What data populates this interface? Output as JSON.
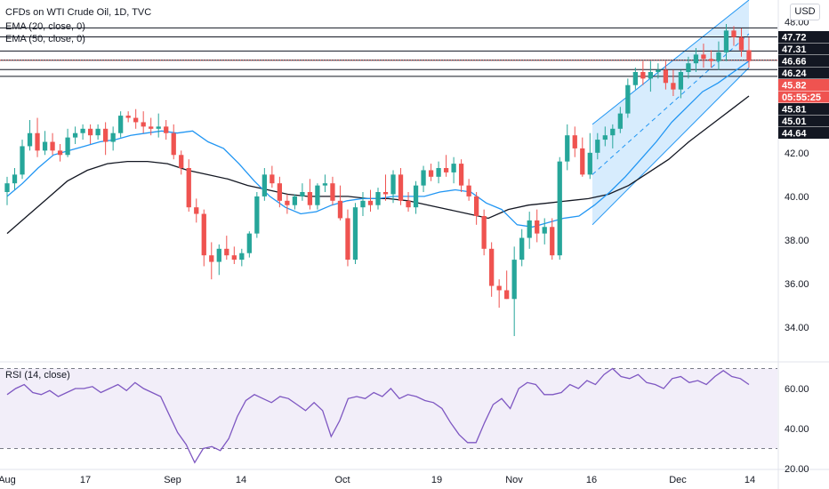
{
  "header": {
    "title": "CFDs on WTI Crude Oil, 1D, TVC",
    "ema20": "EMA (20, close, 0)",
    "ema50": "EMA (50, close, 0)",
    "rsi": "RSI (14, close)",
    "currency": "USD"
  },
  "chart_data": {
    "type": "candlestick",
    "price_axis": {
      "range": [
        32.5,
        49
      ],
      "ticks": [
        "34.00",
        "36.00",
        "38.00",
        "40.00",
        "42.00",
        "48.00"
      ]
    },
    "x_axis": {
      "labels": [
        "Aug",
        "17",
        "Sep",
        "14",
        "Oct",
        "19",
        "Nov",
        "16",
        "Dec",
        "14"
      ]
    },
    "price_badges": [
      {
        "text": "47.72",
        "value": 47.72,
        "color": "#131722"
      },
      {
        "text": "47.31",
        "value": 47.31,
        "color": "#131722"
      },
      {
        "text": "46.66",
        "value": 46.66,
        "color": "#131722"
      },
      {
        "text": "46.24",
        "value": 46.24,
        "color": "#131722"
      },
      {
        "text": "45.82",
        "value": 45.82,
        "color": "#ef5350"
      },
      {
        "text": "05:55:25",
        "value": 45.45,
        "color": "#ef5350"
      },
      {
        "text": "45.81",
        "value": 45.81,
        "color": "#131722"
      },
      {
        "text": "45.01",
        "value": 45.01,
        "color": "#131722"
      },
      {
        "text": "44.64",
        "value": 44.64,
        "color": "#131722"
      }
    ],
    "horizontal_levels": [
      47.72,
      47.31,
      46.66,
      46.24,
      45.81,
      45.5
    ],
    "candles_ohlc": [
      [
        40.2,
        40.9,
        39.6,
        40.6
      ],
      [
        40.6,
        41.3,
        40.3,
        41.0
      ],
      [
        41.0,
        42.6,
        40.8,
        42.3
      ],
      [
        42.3,
        43.5,
        42.1,
        42.9
      ],
      [
        42.9,
        43.6,
        41.8,
        42.1
      ],
      [
        42.1,
        43.0,
        41.9,
        42.5
      ],
      [
        42.5,
        42.9,
        41.9,
        42.1
      ],
      [
        42.1,
        42.4,
        41.6,
        41.9
      ],
      [
        41.9,
        43.1,
        41.8,
        42.7
      ],
      [
        42.7,
        43.2,
        42.4,
        42.9
      ],
      [
        42.9,
        43.3,
        42.6,
        43.1
      ],
      [
        43.1,
        43.3,
        42.4,
        42.8
      ],
      [
        42.8,
        43.3,
        42.6,
        43.1
      ],
      [
        43.1,
        43.4,
        41.9,
        42.5
      ],
      [
        42.5,
        43.2,
        42.1,
        42.9
      ],
      [
        42.9,
        43.9,
        42.7,
        43.7
      ],
      [
        43.7,
        43.9,
        43.4,
        43.6
      ],
      [
        43.6,
        44.0,
        43.1,
        43.4
      ],
      [
        43.4,
        43.9,
        42.9,
        43.2
      ],
      [
        43.2,
        43.6,
        42.8,
        43.1
      ],
      [
        43.1,
        43.8,
        42.7,
        43.2
      ],
      [
        43.2,
        43.5,
        42.6,
        42.9
      ],
      [
        42.9,
        43.3,
        41.7,
        41.9
      ],
      [
        41.9,
        42.1,
        41.0,
        41.3
      ],
      [
        41.3,
        41.7,
        39.3,
        39.5
      ],
      [
        39.5,
        39.9,
        38.8,
        39.2
      ],
      [
        39.2,
        39.4,
        36.8,
        37.3
      ],
      [
        37.3,
        37.9,
        36.2,
        37.0
      ],
      [
        37.0,
        37.8,
        36.4,
        37.6
      ],
      [
        37.6,
        38.2,
        37.1,
        37.3
      ],
      [
        37.3,
        37.7,
        36.9,
        37.1
      ],
      [
        37.1,
        37.6,
        36.8,
        37.4
      ],
      [
        37.4,
        38.4,
        37.2,
        38.3
      ],
      [
        38.3,
        40.2,
        38.1,
        40.0
      ],
      [
        40.0,
        41.3,
        39.8,
        41.0
      ],
      [
        41.0,
        41.4,
        40.4,
        40.6
      ],
      [
        40.6,
        40.9,
        39.5,
        39.8
      ],
      [
        39.8,
        40.1,
        39.2,
        39.6
      ],
      [
        39.6,
        40.1,
        39.4,
        40.0
      ],
      [
        40.0,
        40.6,
        39.8,
        40.2
      ],
      [
        40.2,
        40.8,
        39.4,
        39.6
      ],
      [
        39.6,
        40.6,
        39.4,
        40.5
      ],
      [
        40.5,
        41.0,
        40.2,
        40.6
      ],
      [
        40.6,
        40.9,
        39.6,
        39.8
      ],
      [
        39.8,
        40.5,
        38.9,
        39.0
      ],
      [
        39.0,
        39.4,
        36.8,
        37.1
      ],
      [
        37.1,
        39.7,
        36.9,
        39.5
      ],
      [
        39.5,
        40.2,
        39.1,
        39.8
      ],
      [
        39.8,
        40.3,
        39.3,
        39.6
      ],
      [
        39.6,
        40.4,
        39.4,
        40.2
      ],
      [
        40.2,
        41.0,
        39.8,
        40.1
      ],
      [
        40.1,
        41.2,
        39.7,
        41.0
      ],
      [
        41.0,
        41.3,
        39.6,
        39.8
      ],
      [
        39.8,
        40.2,
        39.3,
        39.5
      ],
      [
        39.5,
        40.7,
        39.2,
        40.5
      ],
      [
        40.5,
        41.4,
        40.2,
        41.2
      ],
      [
        41.2,
        41.5,
        40.7,
        40.9
      ],
      [
        40.9,
        41.6,
        40.6,
        41.3
      ],
      [
        41.3,
        41.9,
        40.9,
        41.1
      ],
      [
        41.1,
        41.8,
        40.6,
        41.5
      ],
      [
        41.5,
        41.7,
        40.2,
        40.5
      ],
      [
        40.5,
        40.8,
        39.8,
        40.0
      ],
      [
        40.0,
        40.2,
        38.7,
        39.1
      ],
      [
        39.1,
        39.4,
        37.3,
        37.6
      ],
      [
        37.6,
        37.9,
        35.4,
        35.9
      ],
      [
        35.9,
        36.2,
        34.9,
        35.7
      ],
      [
        35.7,
        36.6,
        35.3,
        35.3
      ],
      [
        35.3,
        37.7,
        33.6,
        37.1
      ],
      [
        37.1,
        38.5,
        36.8,
        38.1
      ],
      [
        38.1,
        39.3,
        37.6,
        38.9
      ],
      [
        38.9,
        39.4,
        37.9,
        38.3
      ],
      [
        38.3,
        39.0,
        37.8,
        38.6
      ],
      [
        38.6,
        39.0,
        37.1,
        37.3
      ],
      [
        37.3,
        41.8,
        37.1,
        41.6
      ],
      [
        41.6,
        43.3,
        41.2,
        42.8
      ],
      [
        42.8,
        43.2,
        41.8,
        42.2
      ],
      [
        42.2,
        42.7,
        40.9,
        41.0
      ],
      [
        41.0,
        42.9,
        40.8,
        42.0
      ],
      [
        42.0,
        42.9,
        41.7,
        42.6
      ],
      [
        42.6,
        43.2,
        42.3,
        42.8
      ],
      [
        42.8,
        43.3,
        42.2,
        43.1
      ],
      [
        43.1,
        44.1,
        42.9,
        43.8
      ],
      [
        43.8,
        45.4,
        43.6,
        45.1
      ],
      [
        45.1,
        45.9,
        44.9,
        45.7
      ],
      [
        45.7,
        46.2,
        45.1,
        45.4
      ],
      [
        45.4,
        46.2,
        44.8,
        45.7
      ],
      [
        45.7,
        46.1,
        45.4,
        45.8
      ],
      [
        45.8,
        46.2,
        44.9,
        45.2
      ],
      [
        45.2,
        45.8,
        44.6,
        44.9
      ],
      [
        44.9,
        45.8,
        44.5,
        45.7
      ],
      [
        45.7,
        46.4,
        45.4,
        46.1
      ],
      [
        46.1,
        46.8,
        45.7,
        46.5
      ],
      [
        46.5,
        47.0,
        45.9,
        46.3
      ],
      [
        46.3,
        46.7,
        45.9,
        46.2
      ],
      [
        46.2,
        47.1,
        45.8,
        46.6
      ],
      [
        46.6,
        47.9,
        46.2,
        47.6
      ],
      [
        47.6,
        47.8,
        46.9,
        47.3
      ],
      [
        47.3,
        47.7,
        46.4,
        46.7
      ],
      [
        46.7,
        47.3,
        45.9,
        46.2
      ]
    ],
    "ema20": [
      40.0,
      40.6,
      41.3,
      41.9,
      42.1,
      42.3,
      42.5,
      42.6,
      42.8,
      42.9,
      43.0,
      42.9,
      43.0,
      42.5,
      42.2,
      41.5,
      40.7,
      40.0,
      39.5,
      39.2,
      39.3,
      39.6,
      39.8,
      39.9,
      39.9,
      40.0,
      40.0,
      40.0,
      40.2,
      40.3,
      40.2,
      39.7,
      39.4,
      38.7,
      38.6,
      38.8,
      39.0,
      39.1,
      39.6,
      40.2,
      40.9,
      41.7,
      42.5,
      43.4,
      44.1,
      44.8,
      45.2,
      45.7,
      46.2
    ],
    "ema50": [
      38.3,
      39.1,
      39.9,
      40.7,
      41.2,
      41.5,
      41.6,
      41.6,
      41.5,
      41.2,
      41.0,
      40.8,
      40.5,
      40.3,
      40.1,
      40.0,
      40.0,
      40.0,
      39.9,
      39.9,
      39.8,
      39.6,
      39.4,
      39.2,
      39.0,
      39.4,
      39.6,
      39.7,
      39.8,
      39.9,
      40.1,
      40.5,
      41.1,
      41.7,
      42.5,
      43.2,
      43.9,
      44.6
    ],
    "rsi": {
      "label": "RSI (14, close)",
      "range": [
        20,
        72
      ],
      "bands": [
        30,
        70
      ],
      "ticks": [
        "20.00",
        "40.00",
        "60.00"
      ],
      "values": [
        57,
        60,
        62,
        58,
        57,
        59,
        56,
        58,
        60,
        60,
        61,
        58,
        60,
        62,
        59,
        63,
        60,
        58,
        56,
        47,
        38,
        32,
        23,
        30,
        31,
        29,
        35,
        46,
        54,
        57,
        55,
        53,
        56,
        55,
        52,
        49,
        53,
        49,
        36,
        44,
        55,
        56,
        55,
        58,
        56,
        60,
        55,
        57,
        56,
        54,
        53,
        50,
        43,
        37,
        33,
        33,
        43,
        52,
        55,
        50,
        60,
        63,
        62,
        57,
        57,
        58,
        62,
        60,
        64,
        62,
        67,
        70,
        66,
        65,
        67,
        63,
        62,
        60,
        65,
        66,
        63,
        64,
        62,
        66,
        69,
        66,
        65,
        62
      ]
    },
    "channel": {
      "lower_start": [
        38.7,
        0
      ],
      "lower_end": [
        45.9,
        1
      ],
      "upper_start": [
        43.3,
        0
      ],
      "upper_end": [
        49,
        1
      ]
    }
  }
}
